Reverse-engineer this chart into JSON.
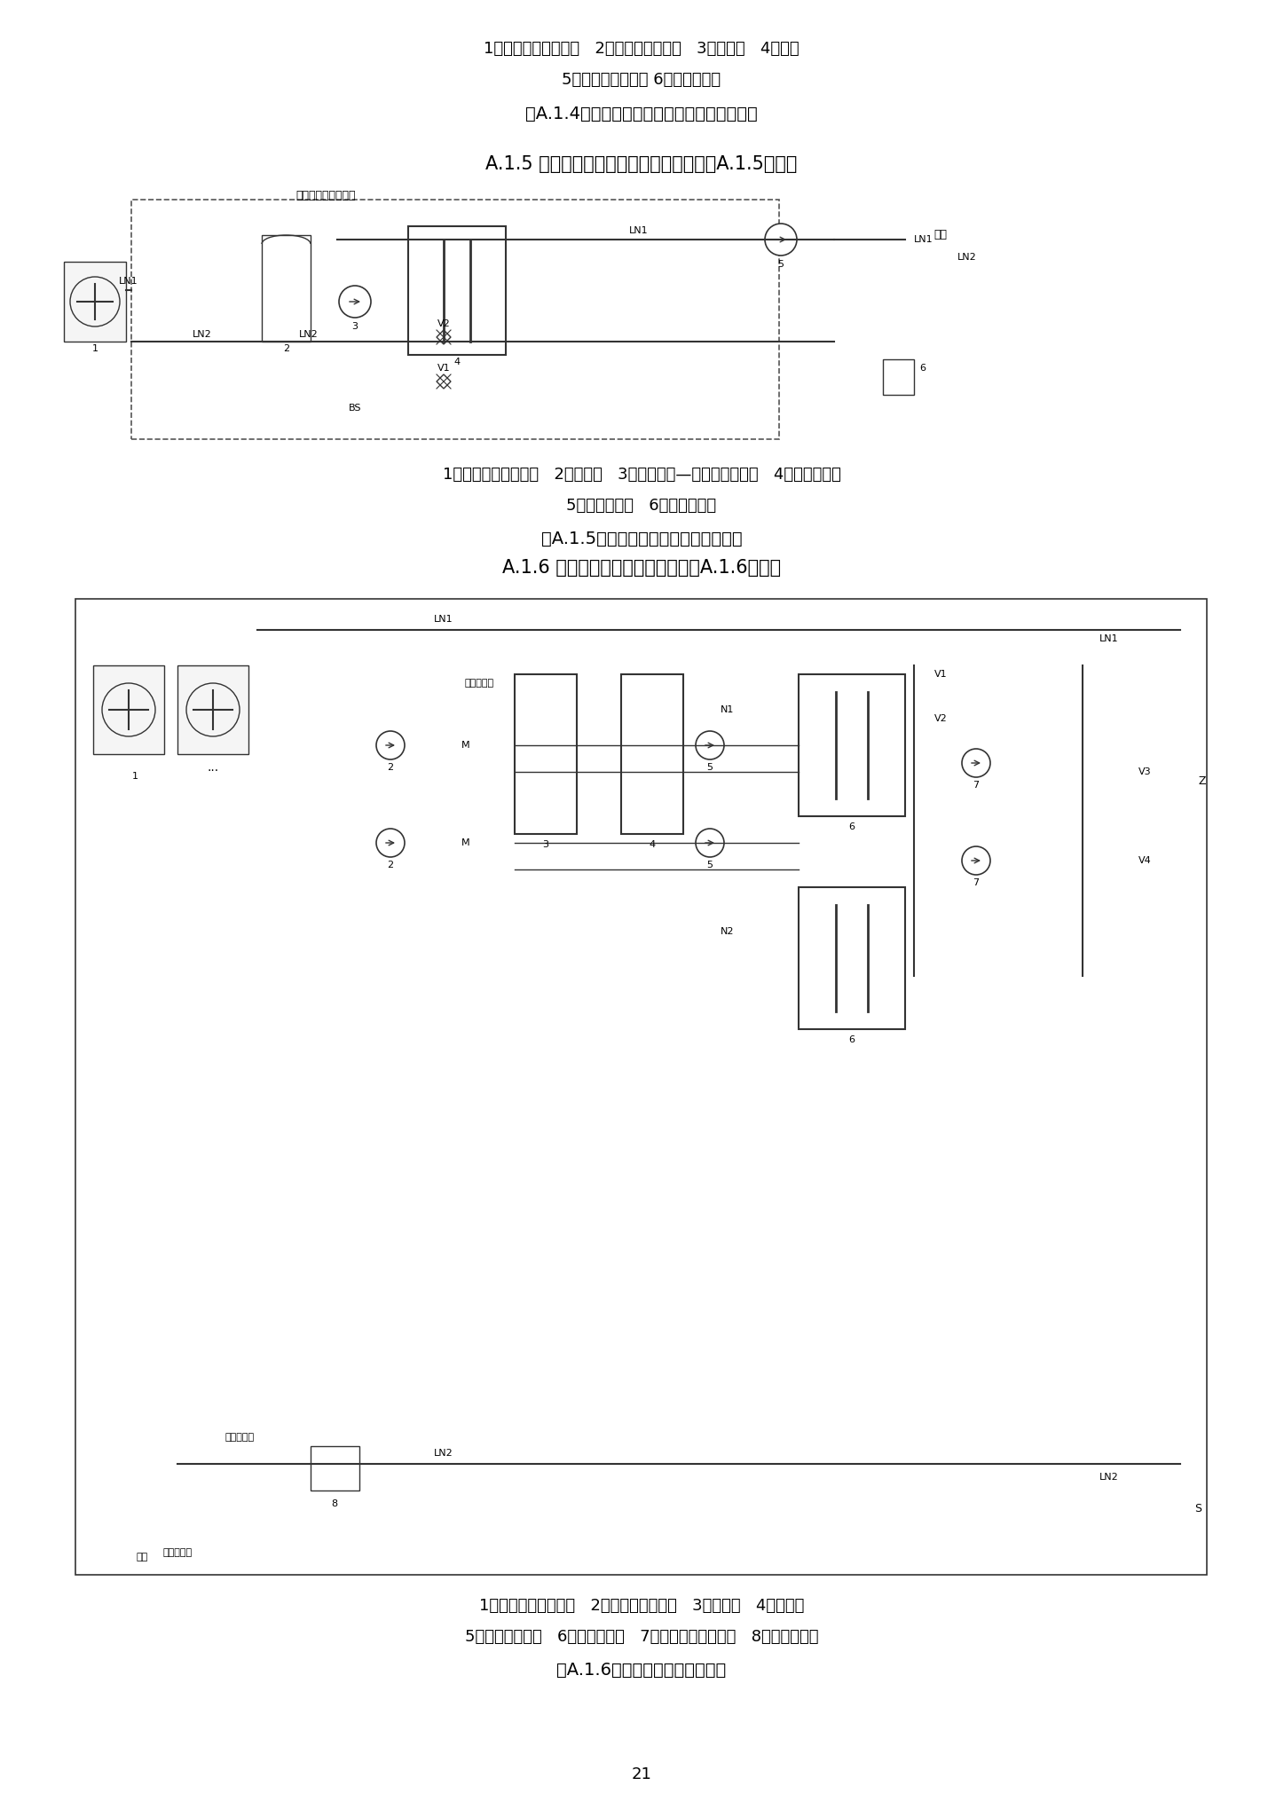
{
  "bg_color": "#ffffff",
  "text_color": "#000000",
  "page_number": "21",
  "section_a15_header": "A.1.5 双级热泵耦合系统一体机原理图如图A.1.5所示。",
  "section_a16_header": "A.1.6 双级热泵耦合系统原理图如图A.1.6所示。",
  "top_caption_line1": "1商用空气源热泵机组   2冷热水一级循环泵   3辅助热源   4去耦罐",
  "top_caption_line2": "5冷热水二级循环泵 6补水定压装置",
  "top_fig_caption": "图A.1.4单级空气源热泵系统（二级泵）原理图",
  "mid_fig_label": "双级热泵耦合一体机",
  "mid_caption_line1": "1商用空气源热泵机组   2缓冲水箱   3空气源热泵—水源热泵循环泵   4水源热泵机组",
  "mid_caption_line2": "5冷热水循环泵   6补水定压装置",
  "mid_fig_caption": "图A.1.5双级热泵耦合系统一体机原理图",
  "bot_caption_line1": "1商用空气源热泵机组   2空气源热泵循环泵   3缓冲水箱   4辅助热源",
  "bot_caption_line2": "5水源热泵循环泵   6水源热泵机组   7用户侧冷热水循环泵   8补水定压装置",
  "bot_fig_caption": "图A.1.6双级热泵耦合系统原理图",
  "font_size_header": 15,
  "font_size_caption": 13,
  "font_size_fig_title": 14,
  "font_size_label": 9,
  "font_size_page": 13
}
